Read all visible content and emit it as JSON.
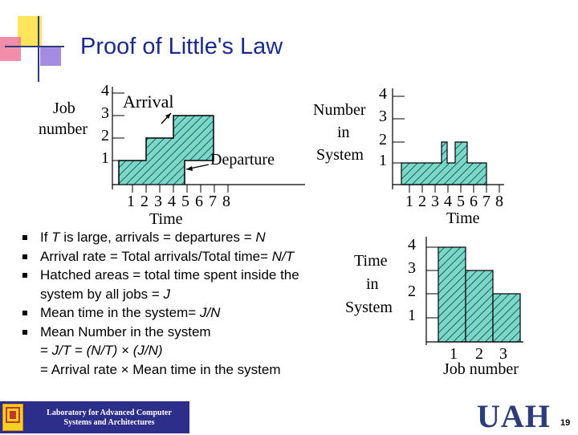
{
  "title": "Proof of Little's Law",
  "chart_left": {
    "ylabel_line1": "Job",
    "ylabel_line2": "number",
    "yticks": [
      "4",
      "3",
      "2",
      "1"
    ],
    "xticks": [
      "1",
      "2",
      "3",
      "4",
      "5",
      "6",
      "7",
      "8"
    ],
    "xlabel": "Time",
    "arrival_label": "Arrival",
    "departure_label": "Departure"
  },
  "chart_right": {
    "ylabel_line1": "Number",
    "ylabel_line2": "in",
    "ylabel_line3": "System",
    "yticks": [
      "4",
      "3",
      "2",
      "1"
    ],
    "xticks": [
      "1",
      "2",
      "3",
      "4",
      "5",
      "6",
      "7",
      "8"
    ],
    "xlabel": "Time"
  },
  "chart_bottom": {
    "ylabel_line1": "Time",
    "ylabel_line2": "in",
    "ylabel_line3": "System",
    "yticks": [
      "4",
      "3",
      "2",
      "1"
    ],
    "xticks": [
      "1",
      "2",
      "3"
    ],
    "xlabel": "Job number"
  },
  "bullets": {
    "b1_pre": "If ",
    "b1_T": "T",
    "b1_mid": " is large, arrivals = departures = ",
    "b1_N": "N",
    "b2_pre": "Arrival rate = Total arrivals/Total time= ",
    "b2_ital": "N/T",
    "b3_line1": "Hatched areas = total time spent inside the",
    "b3_line2_pre": "system by all jobs = ",
    "b3_J": "J",
    "b4_pre": "Mean time in the system= ",
    "b4_ital": "J/N",
    "b5_line1": "Mean Number in the system",
    "b5_line2_pre": "= ",
    "b5_line2_ital1": "J/T",
    "b5_line2_mid": " = ",
    "b5_line2_ital2": "(N/T)",
    "b5_line2_times": " × ",
    "b5_line2_ital3": "(J/N)",
    "b5_line3": "= Arrival rate × Mean time in the system"
  },
  "footer": {
    "lab_line1": "Laboratory for Advanced Computer",
    "lab_line2": "Systems and Architectures",
    "uah": "UAH",
    "page_number": "19"
  },
  "colors": {
    "title": "#1b2a8c",
    "hatch_fill": "#7fd6c8",
    "hatch_line": "#0a6b60",
    "banner": "#2d2e8a"
  }
}
